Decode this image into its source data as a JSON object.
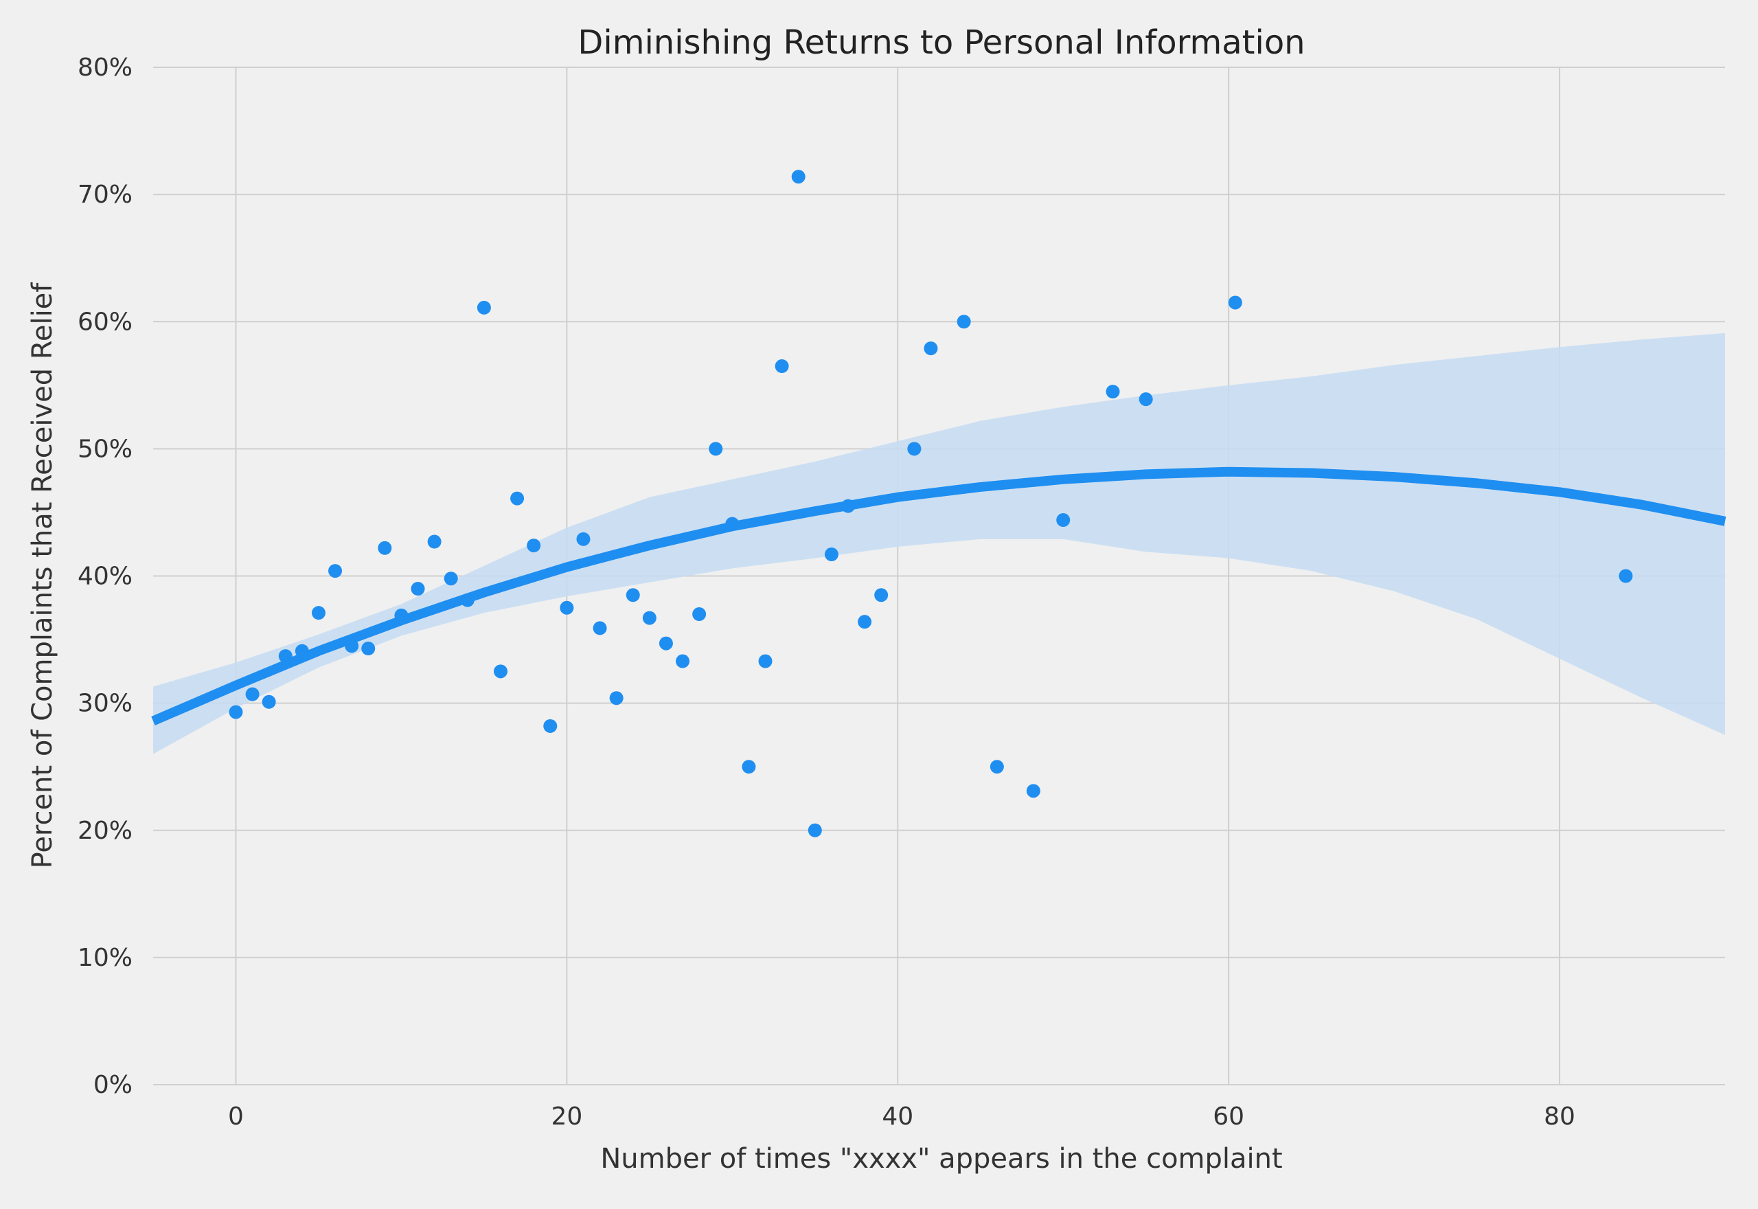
{
  "chart_data": {
    "type": "scatter",
    "title": "Diminishing Returns to Personal Information",
    "xlabel": "Number of times \"xxxx\" appears in the complaint",
    "ylabel": "Percent of Complaints that Received Relief",
    "xlim": [
      -5,
      90
    ],
    "ylim": [
      0,
      80
    ],
    "x_ticks": [
      0,
      20,
      40,
      60,
      80
    ],
    "y_ticks": [
      0,
      10,
      20,
      30,
      40,
      50,
      60,
      70,
      80
    ],
    "y_tick_labels": [
      "0%",
      "10%",
      "20%",
      "30%",
      "40%",
      "50%",
      "60%",
      "70%",
      "80%"
    ],
    "grid": true,
    "colors": {
      "points": "#1f8ef1",
      "fit_line": "#1f8ef1",
      "ci_band": "#c5dcf2",
      "background": "#f0f0f0",
      "grid": "#cfcfcf"
    },
    "series": [
      {
        "kind": "points",
        "x": [
          0,
          1,
          2,
          3,
          4,
          5,
          6,
          7,
          8,
          9,
          10,
          11,
          12,
          13,
          14,
          15,
          16,
          17,
          18,
          19,
          20,
          21,
          22,
          23,
          24,
          25,
          26,
          27,
          28,
          29,
          30,
          31,
          32,
          33,
          34,
          35,
          36,
          37,
          38,
          39,
          41,
          42,
          44,
          46,
          48.2,
          50,
          53,
          55,
          60.4,
          84
        ],
        "y": [
          29.3,
          30.7,
          30.1,
          33.7,
          34.1,
          37.1,
          40.4,
          34.5,
          34.3,
          42.2,
          36.9,
          39.0,
          42.7,
          39.8,
          38.1,
          61.1,
          32.5,
          46.1,
          42.4,
          28.2,
          37.5,
          42.9,
          35.9,
          30.4,
          38.5,
          36.7,
          34.7,
          33.3,
          37.0,
          50.0,
          44.1,
          25.0,
          33.3,
          56.5,
          71.4,
          20.0,
          41.7,
          45.5,
          36.4,
          38.5,
          50.0,
          57.9,
          60.0,
          25.0,
          23.1,
          44.4,
          54.5,
          53.9,
          61.5,
          40.0
        ]
      },
      {
        "kind": "fit",
        "x": [
          -5,
          0,
          5,
          10,
          15,
          20,
          25,
          30,
          35,
          40,
          45,
          50,
          55,
          60,
          65,
          70,
          75,
          80,
          85,
          90
        ],
        "y": [
          28.6,
          31.4,
          34.1,
          36.5,
          38.7,
          40.7,
          42.4,
          43.9,
          45.1,
          46.2,
          47.0,
          47.6,
          48.0,
          48.2,
          48.1,
          47.8,
          47.3,
          46.6,
          45.6,
          44.3
        ]
      },
      {
        "kind": "ci_band",
        "x": [
          -5,
          0,
          5,
          10,
          15,
          20,
          25,
          30,
          35,
          40,
          45,
          50,
          55,
          60,
          65,
          70,
          75,
          80,
          85,
          90
        ],
        "upper": [
          31.3,
          33.2,
          35.4,
          37.8,
          40.8,
          43.8,
          46.2,
          47.6,
          49.0,
          50.6,
          52.2,
          53.3,
          54.2,
          55.0,
          55.7,
          56.6,
          57.3,
          58.0,
          58.6,
          59.1
        ],
        "lower": [
          26.0,
          29.6,
          32.8,
          35.3,
          37.1,
          38.4,
          39.5,
          40.6,
          41.4,
          42.3,
          42.9,
          42.9,
          41.9,
          41.4,
          40.4,
          38.8,
          36.6,
          33.5,
          30.4,
          27.5
        ]
      }
    ]
  }
}
